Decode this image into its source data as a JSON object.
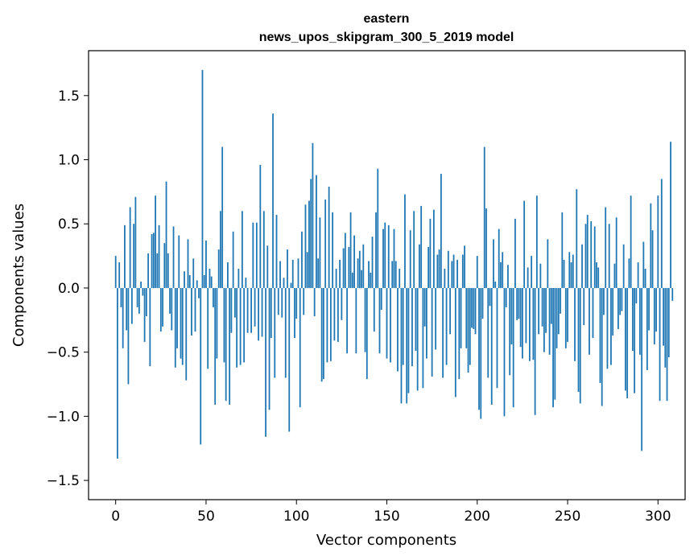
{
  "chart_data": {
    "type": "bar",
    "title_line1": "eastern",
    "title_line2": "news_upos_skipgram_300_5_2019 model",
    "xlabel": "Vector components",
    "ylabel": "Components values",
    "xlim": [
      -15,
      315
    ],
    "ylim": [
      -1.65,
      1.85
    ],
    "xticks": [
      0,
      50,
      100,
      150,
      200,
      250,
      300
    ],
    "xtick_labels": [
      "0",
      "50",
      "100",
      "150",
      "200",
      "250",
      "300"
    ],
    "yticks": [
      -1.5,
      -1.0,
      -0.5,
      0.0,
      0.5,
      1.0,
      1.5
    ],
    "ytick_labels": [
      "−1.5",
      "−1.0",
      "−0.5",
      "0.0",
      "0.5",
      "1.0",
      "1.5"
    ],
    "bar_color": "#1f77b4",
    "grid": false,
    "values": [
      0.25,
      -1.33,
      0.2,
      -0.15,
      -0.47,
      0.49,
      -0.33,
      -0.75,
      0.63,
      -0.28,
      0.5,
      0.71,
      -0.15,
      -0.2,
      0.05,
      -0.06,
      -0.42,
      -0.22,
      0.27,
      -0.61,
      0.42,
      0.43,
      0.72,
      0.27,
      0.49,
      -0.34,
      -0.3,
      0.35,
      0.83,
      0.27,
      -0.2,
      -0.33,
      0.48,
      -0.62,
      -0.47,
      0.41,
      -0.55,
      -0.6,
      0.13,
      -0.72,
      0.38,
      0.1,
      -0.37,
      0.23,
      -0.34,
      0.06,
      -0.08,
      -1.22,
      1.7,
      0.1,
      0.37,
      -0.63,
      0.15,
      0.09,
      -0.15,
      -0.91,
      -0.55,
      0.3,
      0.6,
      1.1,
      -0.58,
      -0.88,
      0.2,
      -0.91,
      -0.35,
      0.44,
      -0.23,
      -0.62,
      0.15,
      -0.6,
      0.6,
      -0.58,
      0.08,
      -0.35,
      0.0,
      -0.35,
      0.51,
      -0.3,
      0.51,
      -0.41,
      0.96,
      -0.38,
      0.6,
      -1.16,
      0.33,
      -0.95,
      -0.39,
      1.36,
      -0.7,
      0.57,
      -0.21,
      0.21,
      -0.23,
      0.08,
      -0.7,
      0.3,
      -1.12,
      0.04,
      0.22,
      -0.39,
      -0.24,
      0.23,
      -0.93,
      0.44,
      -0.21,
      0.65,
      0.28,
      0.68,
      0.85,
      1.13,
      -0.22,
      0.88,
      0.23,
      0.55,
      -0.73,
      -0.71,
      0.69,
      -0.58,
      0.79,
      -0.57,
      0.59,
      -0.41,
      0.15,
      -0.42,
      0.22,
      -0.25,
      0.31,
      0.43,
      -0.51,
      0.32,
      0.59,
      0.12,
      0.41,
      -0.51,
      0.23,
      0.29,
      0.14,
      0.34,
      -0.5,
      -0.71,
      0.21,
      0.12,
      0.4,
      -0.34,
      0.59,
      0.93,
      -0.51,
      -0.17,
      0.46,
      0.51,
      -0.55,
      0.49,
      -0.58,
      0.21,
      0.46,
      0.21,
      -0.65,
      0.15,
      -0.9,
      -0.6,
      0.73,
      -0.9,
      -0.82,
      0.45,
      -0.61,
      0.6,
      -0.49,
      -0.8,
      0.34,
      0.64,
      -0.78,
      -0.3,
      -0.55,
      0.32,
      0.54,
      -0.69,
      0.61,
      -0.48,
      0.26,
      0.3,
      0.89,
      -0.7,
      0.15,
      -0.6,
      0.29,
      -0.36,
      0.21,
      0.26,
      -0.85,
      0.22,
      -0.71,
      -0.47,
      0.26,
      0.33,
      -0.47,
      -0.66,
      -0.6,
      -0.31,
      -0.32,
      -0.36,
      0.25,
      -0.95,
      -1.02,
      -0.24,
      1.1,
      0.62,
      -0.7,
      -0.14,
      -0.91,
      0.38,
      0.05,
      -0.78,
      0.46,
      0.2,
      0.28,
      -1.0,
      -0.15,
      0.18,
      -0.68,
      -0.44,
      -0.93,
      0.54,
      -0.25,
      -0.24,
      -0.46,
      -0.55,
      0.68,
      -0.43,
      0.16,
      -0.57,
      0.25,
      -0.56,
      -0.99,
      0.72,
      -0.36,
      0.19,
      -0.3,
      -0.5,
      -0.35,
      0.38,
      -0.52,
      -0.28,
      -0.93,
      -0.87,
      -0.47,
      -0.36,
      -0.2,
      0.59,
      0.22,
      -0.47,
      -0.42,
      0.28,
      0.2,
      0.26,
      -0.57,
      0.77,
      -0.81,
      -0.9,
      0.34,
      -0.29,
      0.5,
      0.57,
      -0.52,
      0.52,
      -0.39,
      0.48,
      0.2,
      0.16,
      -0.74,
      -0.92,
      -0.21,
      0.63,
      -0.63,
      0.5,
      -0.6,
      -0.37,
      0.19,
      0.55,
      -0.32,
      -0.21,
      -0.18,
      0.34,
      -0.8,
      -0.86,
      0.23,
      0.72,
      -0.49,
      -0.82,
      -0.12,
      0.2,
      -0.52,
      -1.27,
      0.36,
      0.15,
      -0.64,
      -0.33,
      0.66,
      0.45,
      -0.44,
      -0.34,
      0.72,
      -0.88,
      0.85,
      -0.45,
      -0.62,
      -0.88,
      -0.54,
      1.14,
      -0.1
    ]
  }
}
